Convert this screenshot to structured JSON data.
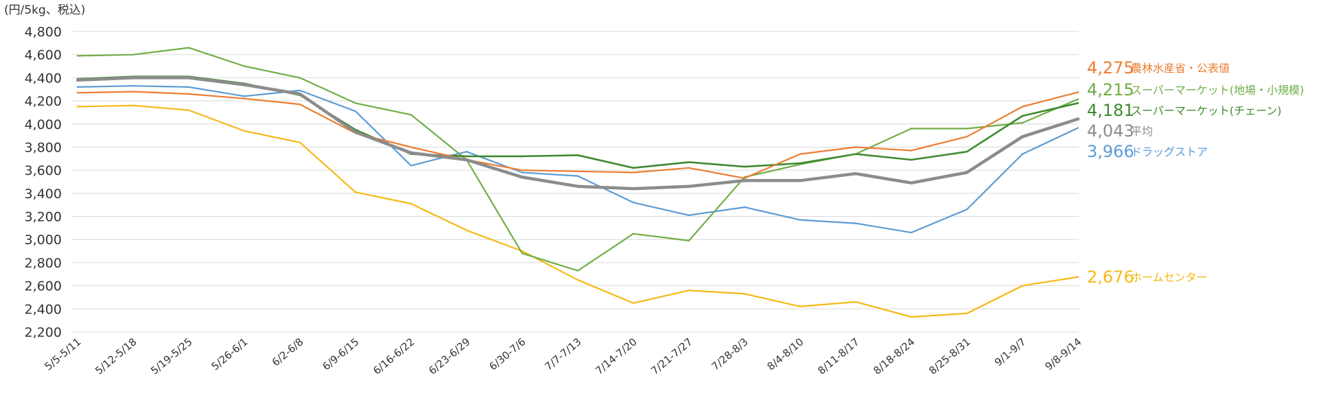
{
  "chart_data": {
    "type": "line",
    "title": "",
    "unit_label": "(円/5kg、税込)",
    "xlabel": "",
    "ylabel": "",
    "ylim": [
      2200,
      4800
    ],
    "yticks": [
      2200,
      2400,
      2600,
      2800,
      3000,
      3200,
      3400,
      3600,
      3800,
      4000,
      4200,
      4400,
      4600,
      4800
    ],
    "ytick_labels": [
      "2,200",
      "2,400",
      "2,600",
      "2,800",
      "3,000",
      "3,200",
      "3,400",
      "3,600",
      "3,800",
      "4,000",
      "4,200",
      "4,400",
      "4,600",
      "4,800"
    ],
    "grid": true,
    "categories": [
      "5/5-5/11",
      "5/12-5/18",
      "5/19-5/25",
      "5/26-6/1",
      "6/2-6/8",
      "6/9-6/15",
      "6/16-6/22",
      "6/23-6/29",
      "6/30-7/6",
      "7/7-7/13",
      "7/14-7/20",
      "7/21-7/27",
      "7/28-8/3",
      "8/4-8/10",
      "8/11-8/17",
      "8/18-8/24",
      "8/25-8/31",
      "9/1-9/7",
      "9/8-9/14"
    ],
    "series": [
      {
        "name": "ホームセンター",
        "end_label": "2,676",
        "color": "#f5b914",
        "width": 2.2,
        "values": [
          4150,
          4160,
          4120,
          3940,
          3840,
          3410,
          3310,
          3080,
          2900,
          2650,
          2450,
          2560,
          2530,
          2420,
          2460,
          2330,
          2360,
          2600,
          2676
        ]
      },
      {
        "name": "ドラッグストア",
        "end_label": "3,966",
        "color": "#5b9bd5",
        "width": 2.2,
        "values": [
          4320,
          4330,
          4320,
          4240,
          4290,
          4110,
          3640,
          3760,
          3580,
          3550,
          3320,
          3210,
          3280,
          3170,
          3140,
          3060,
          3260,
          3740,
          3966
        ]
      },
      {
        "name": "スーパーマーケット(地場・小規模)",
        "end_label": "4,215",
        "color": "#70ad47",
        "width": 2.2,
        "values": [
          4590,
          4600,
          4660,
          4500,
          4400,
          4180,
          4080,
          3690,
          2880,
          2730,
          3050,
          2990,
          3540,
          3650,
          3740,
          3960,
          3960,
          4010,
          4215
        ]
      },
      {
        "name": "スーパーマーケット(チェーン)",
        "end_label": "4,181",
        "color": "#3f8a2e",
        "width": 2.6,
        "values": [
          4390,
          4410,
          4410,
          4350,
          4250,
          3950,
          3740,
          3720,
          3720,
          3730,
          3620,
          3670,
          3630,
          3660,
          3740,
          3690,
          3760,
          4070,
          4181
        ]
      },
      {
        "name": "農林水産省・公表値",
        "end_label": "4,275",
        "color": "#ed7d31",
        "width": 2.2,
        "values": [
          4270,
          4280,
          4260,
          4220,
          4170,
          3920,
          3800,
          3690,
          3600,
          3590,
          3580,
          3620,
          3530,
          3740,
          3800,
          3770,
          3890,
          4150,
          4275
        ]
      },
      {
        "name": "平均",
        "end_label": "4,043",
        "color": "#8c8c8c",
        "width": 4.5,
        "values": [
          4380,
          4400,
          4400,
          4340,
          4260,
          3930,
          3750,
          3690,
          3540,
          3460,
          3440,
          3460,
          3510,
          3510,
          3570,
          3490,
          3580,
          3890,
          4043
        ]
      }
    ],
    "end_labels_order": [
      "農林水産省・公表値",
      "スーパーマーケット(地場・小規模)",
      "スーパーマーケット(チェーン)",
      "平均",
      "ドラッグストア",
      "ホームセンター"
    ]
  }
}
